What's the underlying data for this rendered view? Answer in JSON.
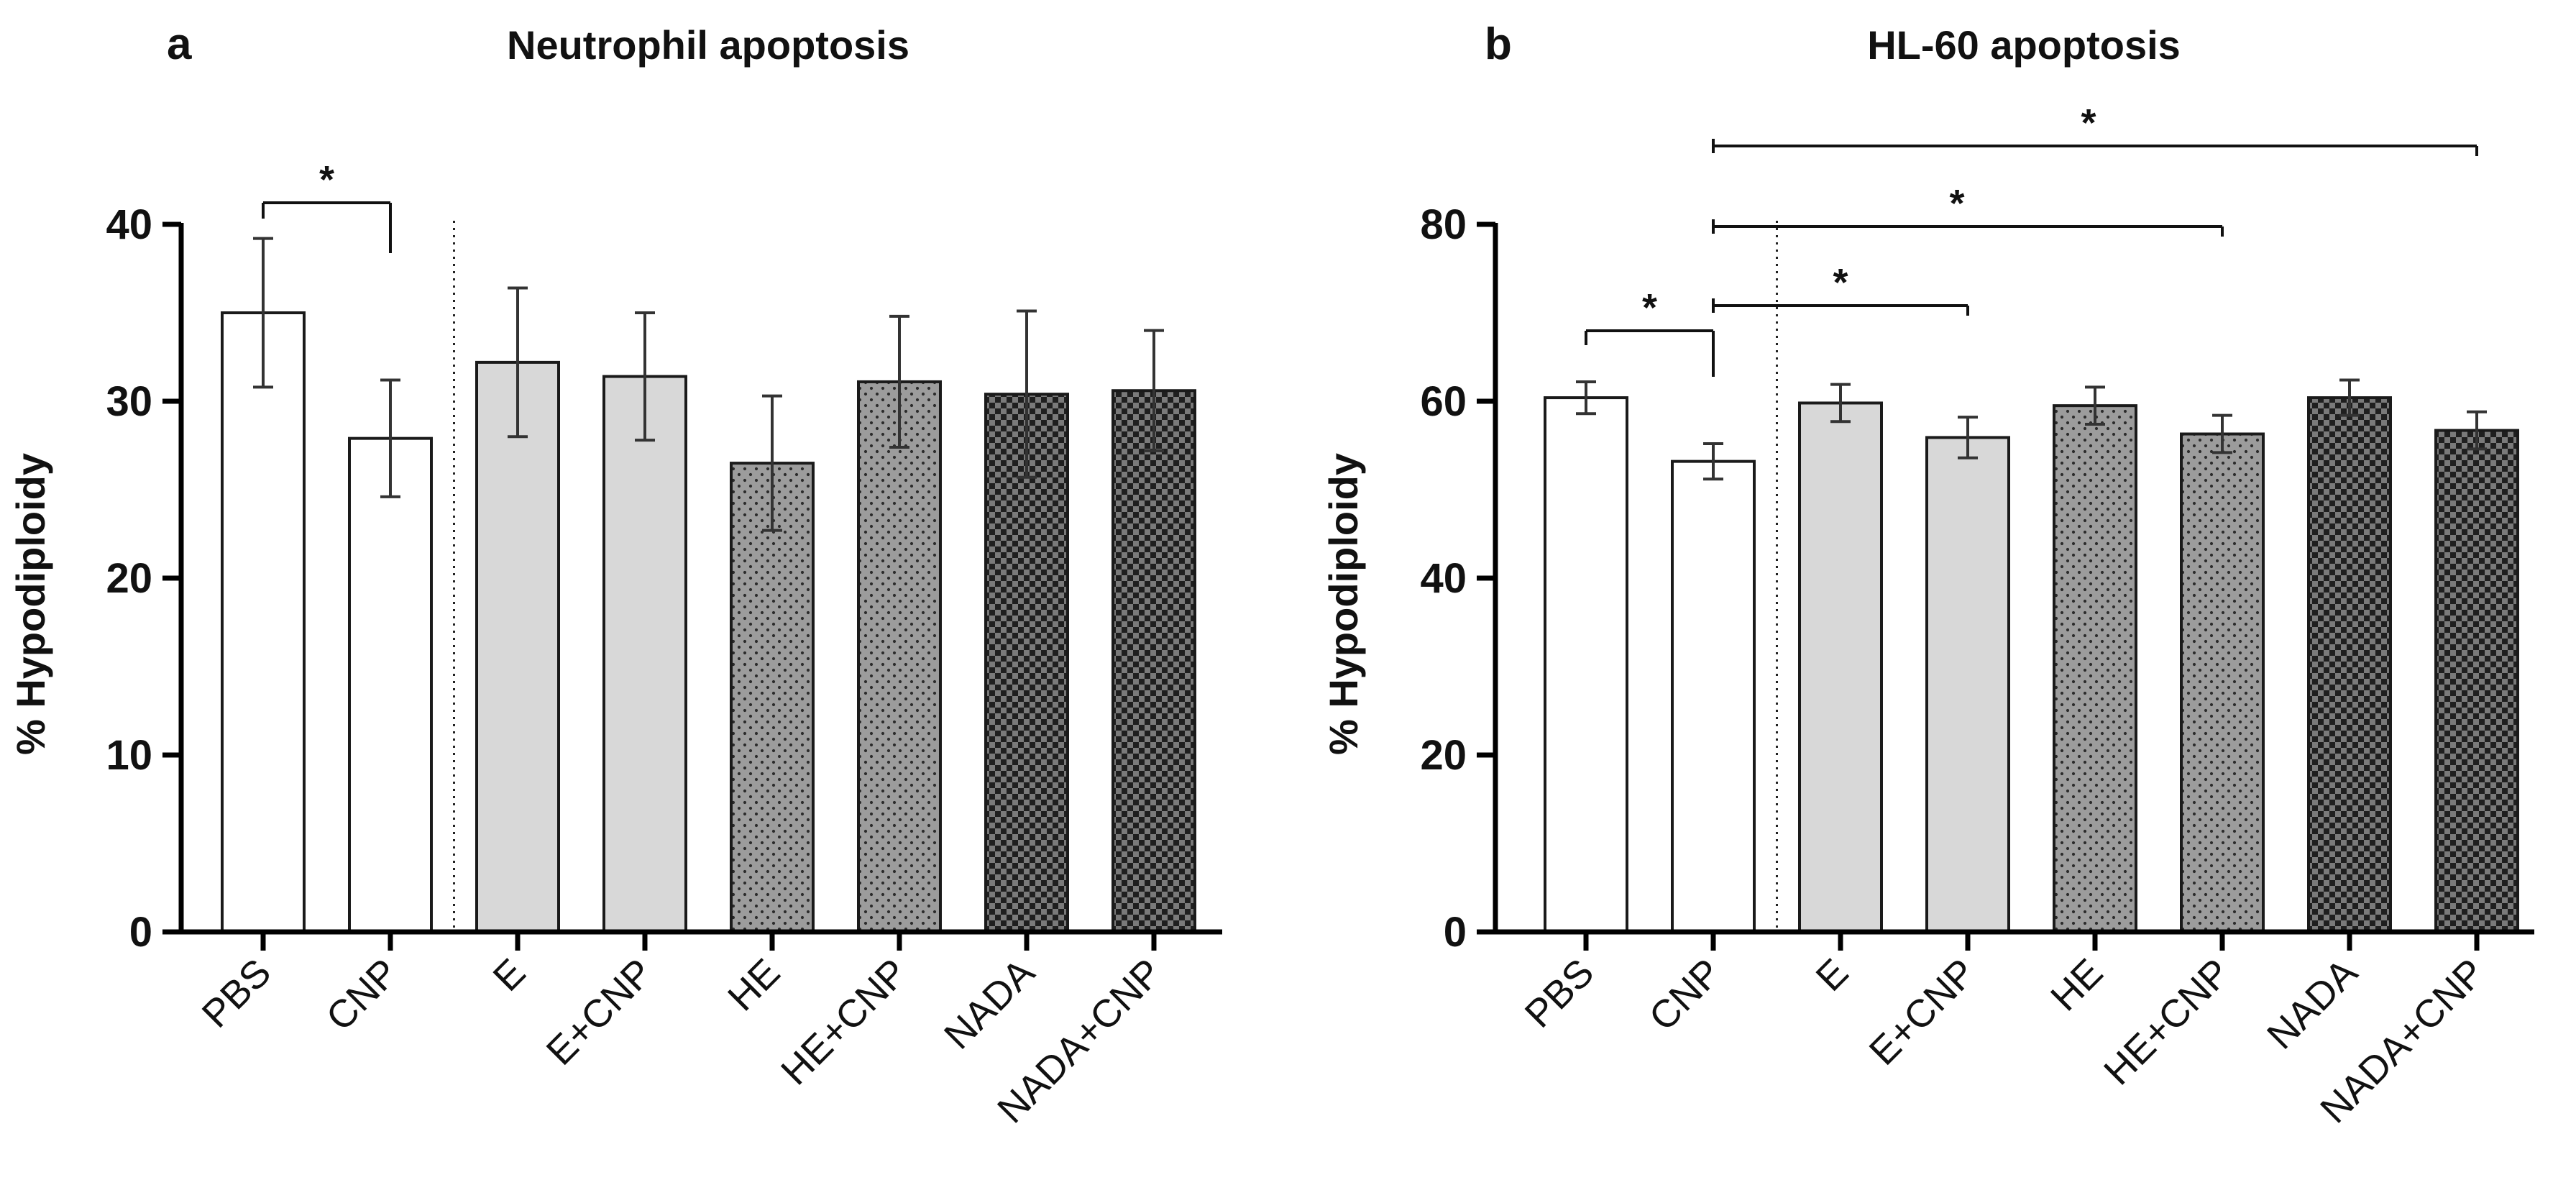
{
  "chart_data": [
    {
      "type": "bar",
      "panel_label": "a",
      "title": "Neutrophil apoptosis",
      "ylabel": "% Hypodiploidy",
      "xlabel": "",
      "ylim": [
        0,
        40
      ],
      "yticks": [
        0,
        10,
        20,
        30,
        40
      ],
      "categories": [
        "PBS",
        "CNP",
        "E",
        "E+CNP",
        "HE",
        "HE+CNP",
        "NADA",
        "NADA+CNP"
      ],
      "values": [
        35.0,
        27.9,
        32.2,
        31.4,
        26.5,
        31.1,
        30.4,
        30.6
      ],
      "errors": [
        4.2,
        3.3,
        4.2,
        3.6,
        3.8,
        3.7,
        4.7,
        3.4
      ],
      "fill_patterns": [
        "white",
        "white",
        "light-gray",
        "light-gray",
        "dotted-gray",
        "dotted-gray",
        "checkered-dark",
        "checkered-dark"
      ],
      "divider_after_index": 1,
      "significance": [
        {
          "from": "PBS",
          "to": "CNP",
          "label": "*"
        }
      ],
      "grid": false,
      "legend": "none"
    },
    {
      "type": "bar",
      "panel_label": "b",
      "title": "HL-60 apoptosis",
      "ylabel": "% Hypodiploidy",
      "xlabel": "",
      "ylim": [
        0,
        80
      ],
      "yticks": [
        0,
        20,
        40,
        60,
        80
      ],
      "categories": [
        "PBS",
        "CNP",
        "E",
        "E+CNP",
        "HE",
        "HE+CNP",
        "NADA",
        "NADA+CNP"
      ],
      "values": [
        60.4,
        53.2,
        59.8,
        55.9,
        59.5,
        56.3,
        60.4,
        56.7
      ],
      "errors": [
        1.8,
        2.0,
        2.1,
        2.3,
        2.1,
        2.1,
        2.0,
        2.1
      ],
      "fill_patterns": [
        "white",
        "white",
        "light-gray",
        "light-gray",
        "dotted-gray",
        "dotted-gray",
        "checkered-dark",
        "checkered-dark"
      ],
      "divider_after_index": 1,
      "significance": [
        {
          "from": "PBS",
          "to": "CNP",
          "label": "*"
        },
        {
          "from": "CNP",
          "to": "E+CNP",
          "label": "*"
        },
        {
          "from": "CNP",
          "to": "HE+CNP",
          "label": "*"
        },
        {
          "from": "CNP",
          "to": "NADA+CNP",
          "label": "*"
        }
      ],
      "grid": false,
      "legend": "none"
    }
  ]
}
